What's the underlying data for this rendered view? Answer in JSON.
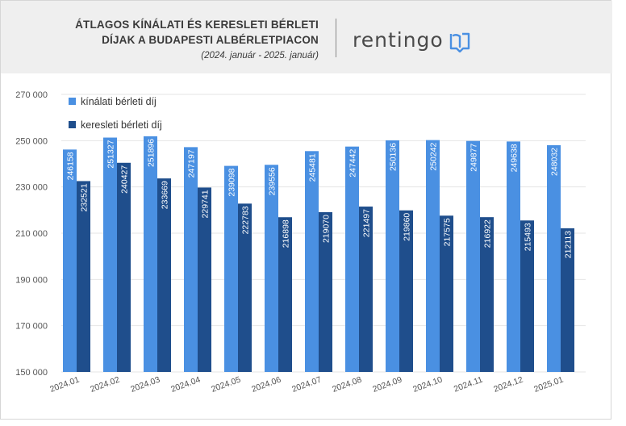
{
  "header": {
    "title_line1": "ÁTLAGOS KÍNÁLATI ÉS KERESLETI BÉRLETI",
    "title_line2": "DÍJAK A BUDAPESTI ALBÉRLETPIACON",
    "subtitle": "(2024. január - 2025. január)",
    "logo_text": "rentingo",
    "logo_icon": "map-pin-book-icon",
    "accent_color": "#4a90e2"
  },
  "chart_data": {
    "type": "bar",
    "categories": [
      "2024.01",
      "2024.02",
      "2024.03",
      "2024.04",
      "2024.05",
      "2024.06",
      "2024.07",
      "2024.08",
      "2024.09",
      "2024.10",
      "2024.11",
      "2024.12",
      "2025.01"
    ],
    "series": [
      {
        "name": "kínálati bérleti díj",
        "color": "#4a90e2",
        "values": [
          246158,
          251327,
          251896,
          247197,
          239098,
          239556,
          245481,
          247442,
          250136,
          250242,
          249877,
          249638,
          248032
        ]
      },
      {
        "name": "keresleti bérleti díj",
        "color": "#1f4e8c",
        "values": [
          232521,
          240427,
          233669,
          229741,
          222783,
          216898,
          219070,
          221497,
          219860,
          217575,
          216922,
          215493,
          212113
        ]
      }
    ],
    "ylim": [
      150000,
      270000
    ],
    "yticks": [
      150000,
      170000,
      190000,
      210000,
      230000,
      250000,
      270000
    ],
    "ytick_labels": [
      "150 000",
      "170 000",
      "190 000",
      "210 000",
      "230 000",
      "250 000",
      "270 000"
    ],
    "grid": true,
    "legend": "top-left",
    "title": "",
    "xlabel": "",
    "ylabel": ""
  }
}
